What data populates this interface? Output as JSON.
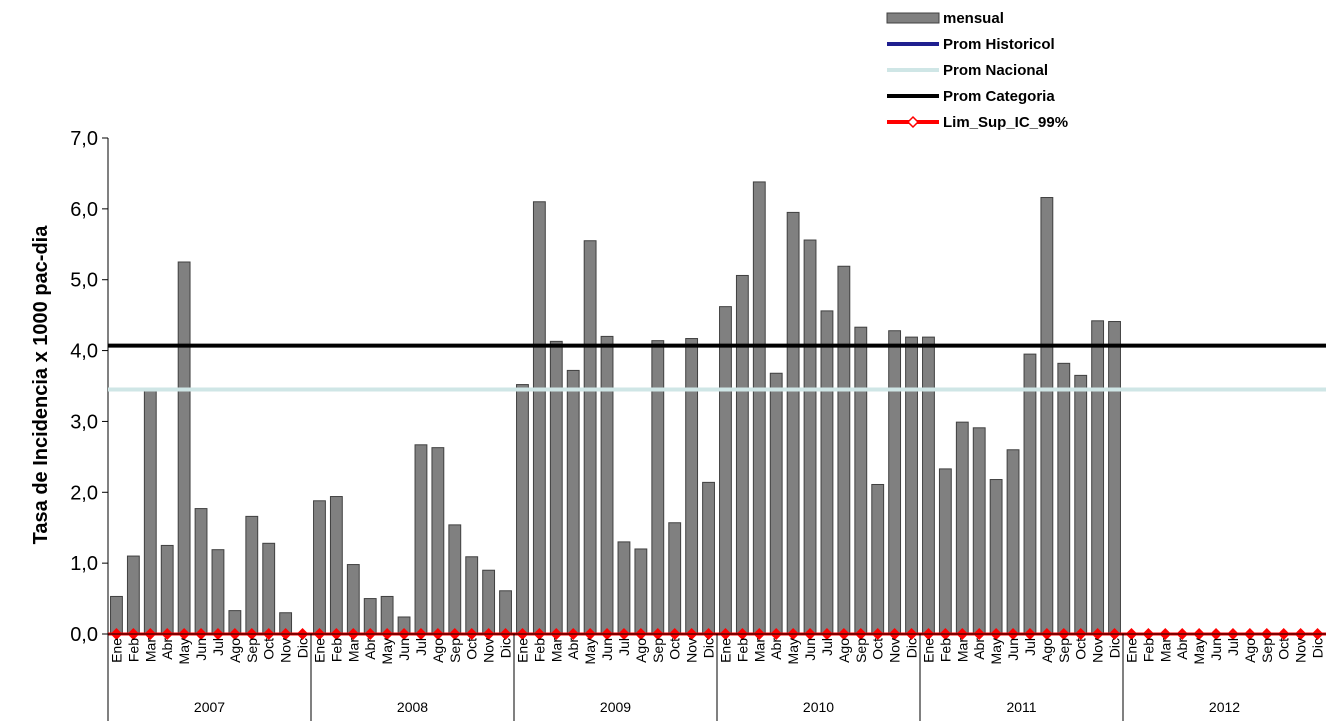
{
  "chart_data": {
    "type": "bar",
    "title": "",
    "xlabel": "",
    "ylabel": "Tasa de Incidencia x 1000 pac-dia",
    "ylim": [
      0,
      7
    ],
    "yticks": [
      "0,0",
      "1,0",
      "2,0",
      "3,0",
      "4,0",
      "5,0",
      "6,0",
      "7,0"
    ],
    "months": [
      "Ene",
      "Feb",
      "Mar",
      "Abr",
      "May",
      "Jun",
      "Jul",
      "Ago",
      "Sep",
      "Oct",
      "Nov",
      "Dic"
    ],
    "years": [
      "2007",
      "2008",
      "2009",
      "2010",
      "2011",
      "2012"
    ],
    "grid": false,
    "legend_position": "top-right",
    "series": [
      {
        "name": "mensual",
        "type": "bar",
        "color": "#808080",
        "values": [
          0.53,
          1.1,
          3.45,
          1.25,
          5.25,
          1.77,
          1.19,
          0.33,
          1.66,
          1.28,
          0.3,
          0.0,
          1.88,
          1.94,
          0.98,
          0.5,
          0.53,
          0.24,
          2.67,
          2.63,
          1.54,
          1.09,
          0.9,
          0.61,
          3.52,
          6.1,
          4.13,
          3.72,
          5.55,
          4.2,
          1.3,
          1.2,
          4.14,
          1.57,
          4.17,
          2.14,
          4.62,
          5.06,
          6.38,
          3.68,
          5.95,
          5.56,
          4.56,
          5.19,
          4.33,
          2.11,
          4.28,
          4.19,
          4.19,
          2.33,
          2.99,
          2.91,
          2.18,
          2.6,
          3.95,
          6.16,
          3.82,
          3.65,
          4.42,
          4.41,
          null,
          null,
          null,
          null,
          null,
          null,
          null,
          null,
          null,
          null,
          null,
          null
        ]
      },
      {
        "name": "Prom Historicol",
        "type": "line",
        "color": "#1f1f8f",
        "value": null
      },
      {
        "name": "Prom Nacional",
        "type": "line",
        "color": "#cfe6e6",
        "value": 3.45
      },
      {
        "name": "Prom Categoria",
        "type": "line",
        "color": "#000000",
        "value": 4.07
      },
      {
        "name": "Lim_Sup_IC_99%",
        "type": "line-marker",
        "color": "#ff0000",
        "value": 0.0
      }
    ]
  }
}
